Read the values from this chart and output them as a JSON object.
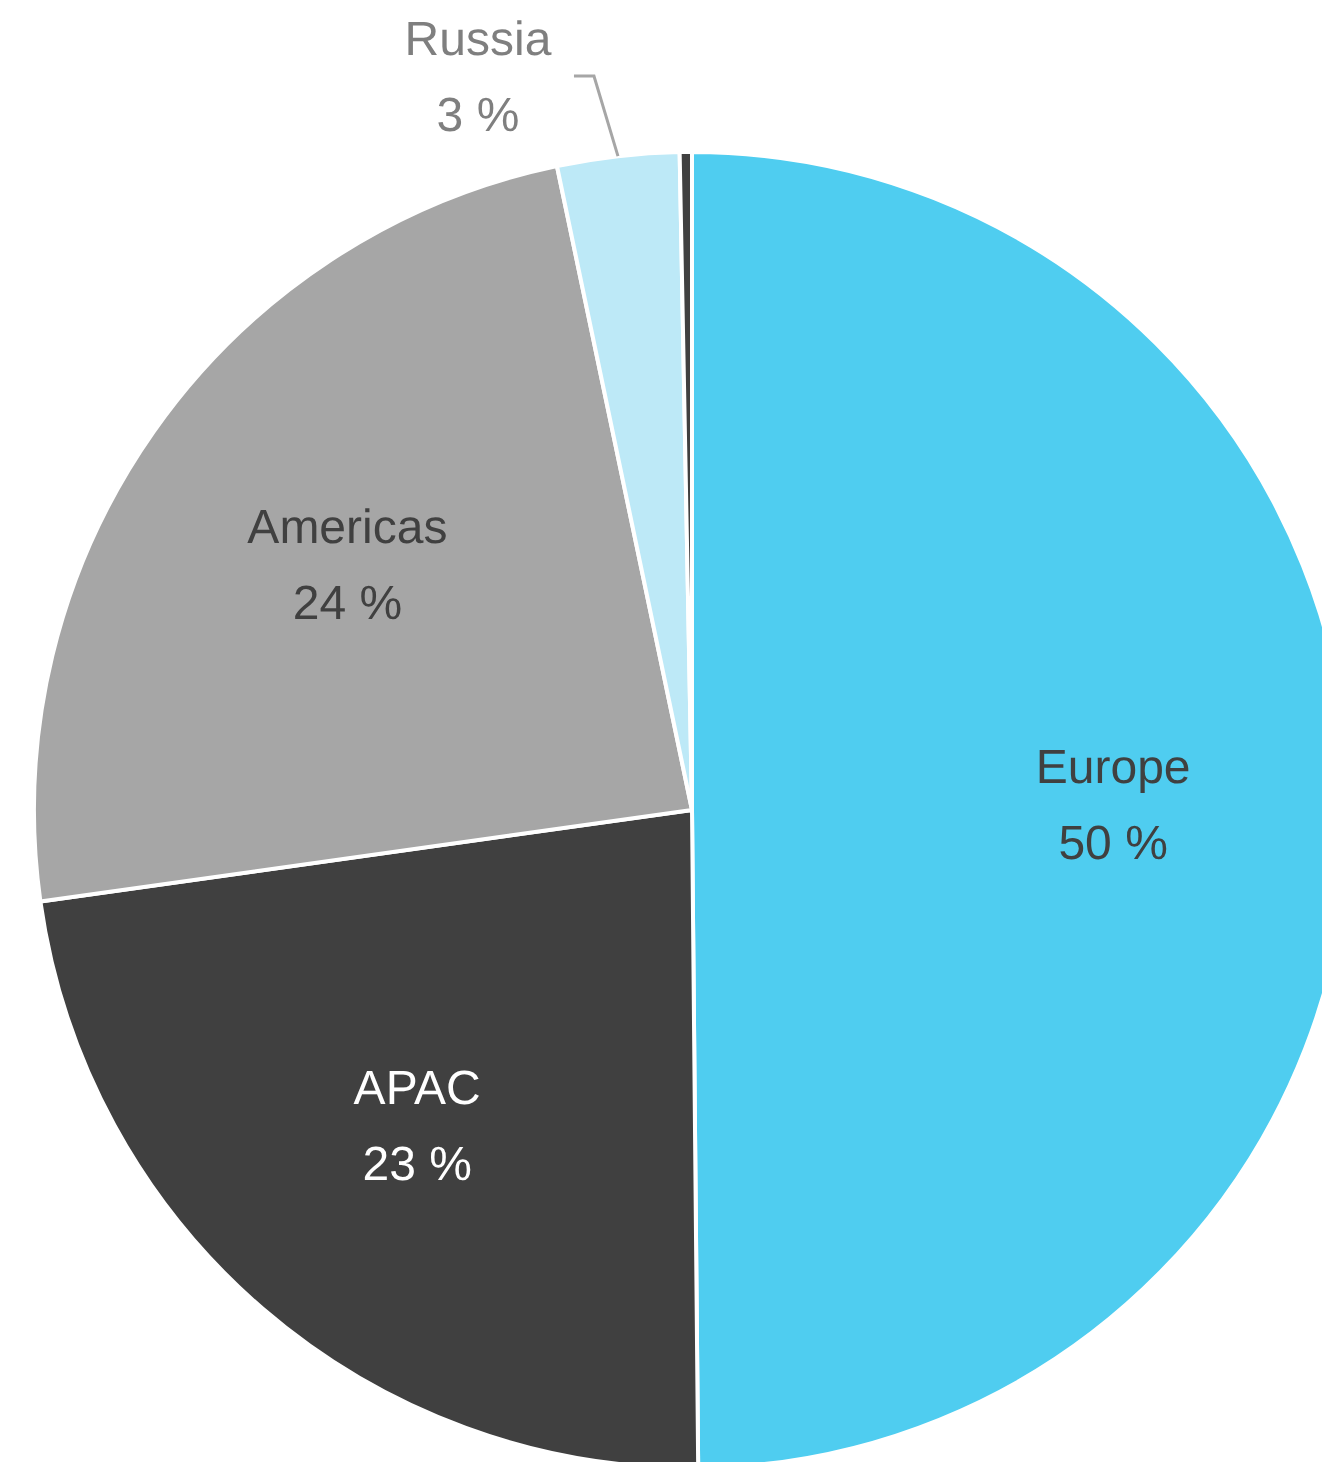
{
  "chart_data": {
    "type": "pie",
    "categories": [
      "Europe",
      "APAC",
      "Americas",
      "Russia",
      null
    ],
    "values": [
      50,
      23,
      24,
      3,
      0.3
    ],
    "colors": [
      "#4fcdf0",
      "#404040",
      "#a6a6a6",
      "#bde9f7",
      "#404040"
    ],
    "value_labels": [
      "50 %",
      "23 %",
      "24 %",
      "3 %",
      null
    ],
    "legend": false
  }
}
